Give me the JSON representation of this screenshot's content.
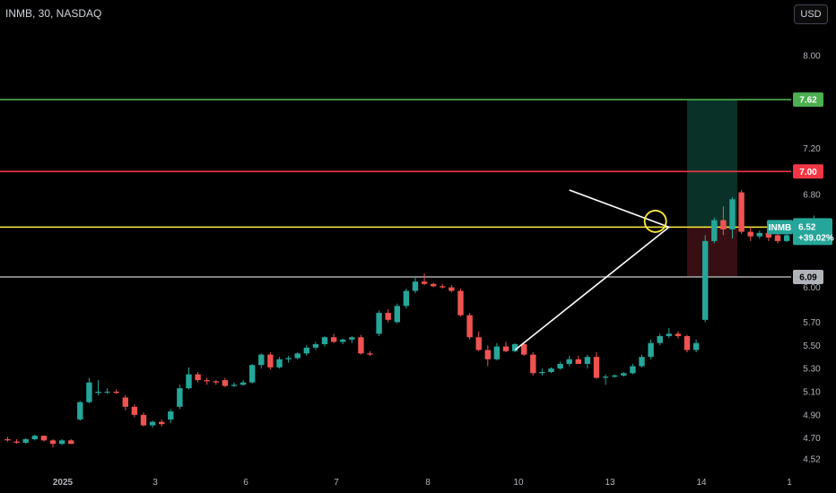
{
  "header": {
    "title": "INMB, 30, NASDAQ",
    "currency_label": "USD"
  },
  "colors": {
    "up": "#26a69a",
    "down": "#ef5350",
    "green_line": "#4caf50",
    "red_line": "#f23645",
    "yellow_line": "#ffeb3b",
    "gray_line": "#9e9e9e"
  },
  "chart_data": {
    "type": "candlestick",
    "symbol": "INMB",
    "ylim": [
      4.47,
      8.2
    ],
    "y_ticks": [
      8.0,
      7.2,
      6.8,
      6.0,
      5.7,
      5.5,
      5.3,
      5.1,
      4.9,
      4.7,
      4.52
    ],
    "x_ticks": [
      "2025",
      "3",
      "6",
      "7",
      "8",
      "10",
      "13",
      "14",
      "1"
    ],
    "levels": [
      {
        "name": "green",
        "value": 7.62,
        "label": "7.62"
      },
      {
        "name": "red",
        "value": 7.0,
        "label": "7.00"
      },
      {
        "name": "yellow",
        "value": 6.52,
        "label": "6.52"
      },
      {
        "name": "gray",
        "value": 6.09,
        "label": "6.09"
      }
    ],
    "last_price": {
      "symbol": "INMB",
      "price": "6.52",
      "change": "+39.02%"
    },
    "position_box": {
      "entry": 6.52,
      "target": 7.62,
      "stop": 6.09
    },
    "triangle_pattern": [
      {
        "i": 62,
        "v": 6.84
      },
      {
        "i": 73,
        "v": 6.52
      },
      {
        "i": 56,
        "v": 5.46
      }
    ],
    "circle_marker": {
      "i": 71.5,
      "v": 6.57
    },
    "candles": [
      [
        4.69,
        4.71,
        4.67,
        4.68
      ],
      [
        4.67,
        4.69,
        4.65,
        4.66
      ],
      [
        4.66,
        4.7,
        4.65,
        4.69
      ],
      [
        4.69,
        4.73,
        4.68,
        4.72
      ],
      [
        4.72,
        4.72,
        4.67,
        4.68
      ],
      [
        4.68,
        4.69,
        4.62,
        4.65
      ],
      [
        4.65,
        4.69,
        4.64,
        4.68
      ],
      [
        4.68,
        4.69,
        4.65,
        4.65
      ],
      [
        4.86,
        5.02,
        4.85,
        5.01
      ],
      [
        5.01,
        5.22,
        5.0,
        5.18
      ],
      [
        5.09,
        5.2,
        5.07,
        5.1
      ],
      [
        5.1,
        5.13,
        5.08,
        5.1
      ],
      [
        5.1,
        5.12,
        5.08,
        5.09
      ],
      [
        5.05,
        5.07,
        4.94,
        4.97
      ],
      [
        4.97,
        4.99,
        4.88,
        4.9
      ],
      [
        4.9,
        4.92,
        4.8,
        4.81
      ],
      [
        4.81,
        4.85,
        4.79,
        4.84
      ],
      [
        4.84,
        4.86,
        4.8,
        4.82
      ],
      [
        4.86,
        4.95,
        4.83,
        4.93
      ],
      [
        4.97,
        5.16,
        4.95,
        5.13
      ],
      [
        5.13,
        5.31,
        5.12,
        5.25
      ],
      [
        5.25,
        5.27,
        5.18,
        5.2
      ],
      [
        5.2,
        5.22,
        5.16,
        5.19
      ],
      [
        5.19,
        5.2,
        5.16,
        5.18
      ],
      [
        5.2,
        5.22,
        5.14,
        5.15
      ],
      [
        5.15,
        5.18,
        5.14,
        5.16
      ],
      [
        5.16,
        5.2,
        5.15,
        5.18
      ],
      [
        5.18,
        5.34,
        5.17,
        5.33
      ],
      [
        5.33,
        5.43,
        5.3,
        5.42
      ],
      [
        5.42,
        5.44,
        5.29,
        5.31
      ],
      [
        5.31,
        5.4,
        5.3,
        5.38
      ],
      [
        5.38,
        5.41,
        5.35,
        5.39
      ],
      [
        5.39,
        5.44,
        5.38,
        5.43
      ],
      [
        5.43,
        5.5,
        5.41,
        5.48
      ],
      [
        5.48,
        5.53,
        5.46,
        5.51
      ],
      [
        5.51,
        5.58,
        5.49,
        5.57
      ],
      [
        5.57,
        5.6,
        5.52,
        5.53
      ],
      [
        5.53,
        5.56,
        5.51,
        5.55
      ],
      [
        5.55,
        5.58,
        5.52,
        5.57
      ],
      [
        5.57,
        5.59,
        5.42,
        5.43
      ],
      [
        5.43,
        5.45,
        5.41,
        5.42
      ],
      [
        5.6,
        5.8,
        5.58,
        5.78
      ],
      [
        5.78,
        5.81,
        5.7,
        5.72
      ],
      [
        5.7,
        5.86,
        5.69,
        5.84
      ],
      [
        5.84,
        5.99,
        5.82,
        5.97
      ],
      [
        5.97,
        6.1,
        5.95,
        6.05
      ],
      [
        6.05,
        6.12,
        6.02,
        6.03
      ],
      [
        6.03,
        6.04,
        6.0,
        6.01
      ],
      [
        6.01,
        6.03,
        5.99,
        6.0
      ],
      [
        6.0,
        6.02,
        5.96,
        5.97
      ],
      [
        5.97,
        5.99,
        5.75,
        5.76
      ],
      [
        5.76,
        5.78,
        5.55,
        5.57
      ],
      [
        5.57,
        5.62,
        5.45,
        5.46
      ],
      [
        5.46,
        5.5,
        5.32,
        5.38
      ],
      [
        5.38,
        5.52,
        5.37,
        5.49
      ],
      [
        5.49,
        5.53,
        5.44,
        5.45
      ],
      [
        5.45,
        5.52,
        5.44,
        5.51
      ],
      [
        5.51,
        5.53,
        5.41,
        5.42
      ],
      [
        5.42,
        5.44,
        5.24,
        5.26
      ],
      [
        5.26,
        5.3,
        5.24,
        5.27
      ],
      [
        5.27,
        5.31,
        5.26,
        5.3
      ],
      [
        5.3,
        5.36,
        5.29,
        5.34
      ],
      [
        5.34,
        5.41,
        5.32,
        5.38
      ],
      [
        5.38,
        5.41,
        5.34,
        5.34
      ],
      [
        5.34,
        5.42,
        5.3,
        5.4
      ],
      [
        5.4,
        5.44,
        5.21,
        5.22
      ],
      [
        5.22,
        5.25,
        5.16,
        5.23
      ],
      [
        5.23,
        5.25,
        5.22,
        5.24
      ],
      [
        5.24,
        5.27,
        5.23,
        5.26
      ],
      [
        5.26,
        5.34,
        5.25,
        5.32
      ],
      [
        5.32,
        5.42,
        5.31,
        5.4
      ],
      [
        5.4,
        5.55,
        5.38,
        5.52
      ],
      [
        5.52,
        5.6,
        5.5,
        5.58
      ],
      [
        5.58,
        5.65,
        5.56,
        5.6
      ],
      [
        5.6,
        5.62,
        5.56,
        5.58
      ],
      [
        5.58,
        5.59,
        5.44,
        5.46
      ],
      [
        5.46,
        5.55,
        5.44,
        5.52
      ],
      [
        5.72,
        6.45,
        5.7,
        6.4
      ],
      [
        6.4,
        6.6,
        6.38,
        6.58
      ],
      [
        6.58,
        6.7,
        6.45,
        6.5
      ],
      [
        6.5,
        6.78,
        6.42,
        6.76
      ],
      [
        6.82,
        6.84,
        6.46,
        6.48
      ],
      [
        6.48,
        6.52,
        6.4,
        6.44
      ],
      [
        6.44,
        6.49,
        6.42,
        6.47
      ],
      [
        6.47,
        6.48,
        6.4,
        6.43
      ],
      [
        6.45,
        6.47,
        6.38,
        6.4
      ],
      [
        6.4,
        6.46,
        6.39,
        6.45
      ],
      [
        6.45,
        6.48,
        6.44,
        6.46
      ],
      [
        6.46,
        6.5,
        6.45,
        6.48
      ],
      [
        6.48,
        6.62,
        6.46,
        6.58
      ],
      [
        6.52,
        6.59,
        6.48,
        6.52
      ]
    ]
  }
}
